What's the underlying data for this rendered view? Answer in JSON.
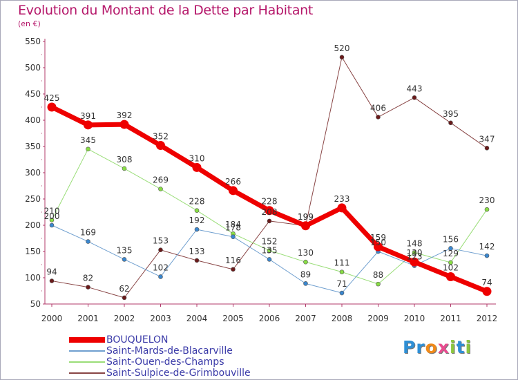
{
  "title": "Evolution du Montant de la Dette par Habitant",
  "subtitle": "(en €)",
  "logo": {
    "text": "Proxiti",
    "letters": [
      {
        "ch": "P",
        "color": "#2e8fd6"
      },
      {
        "ch": "r",
        "color": "#2e8fd6"
      },
      {
        "ch": "o",
        "color": "#f08a1a"
      },
      {
        "ch": "x",
        "color": "#e84c8f"
      },
      {
        "ch": "i",
        "color": "#8cc63f"
      },
      {
        "ch": "t",
        "color": "#2e8fd6"
      },
      {
        "ch": "i",
        "color": "#8cc63f"
      }
    ]
  },
  "chart_data": {
    "type": "line",
    "title": "Evolution du Montant de la Dette par Habitant",
    "subtitle": "(en €)",
    "x": [
      "2000",
      "2001",
      "2002",
      "2003",
      "2004",
      "2005",
      "2006",
      "2007",
      "2008",
      "2009",
      "2010",
      "2011",
      "2012"
    ],
    "ylim": [
      50,
      550
    ],
    "yticks": [
      50,
      100,
      150,
      200,
      250,
      300,
      350,
      400,
      450,
      500,
      550
    ],
    "grid": false,
    "legend_position": "bottom-left",
    "series": [
      {
        "name": "BOUQUELON",
        "color": "#ee0000",
        "marker": "#ee0000",
        "width": 7,
        "values": [
          425,
          391,
          392,
          352,
          310,
          266,
          228,
          199,
          233,
          159,
          130,
          102,
          74
        ]
      },
      {
        "name": "Saint-Mards-de-Blacarville",
        "color": "#6f9fcf",
        "marker": "#3a87cf",
        "width": 1,
        "values": [
          200,
          169,
          135,
          102,
          192,
          178,
          135,
          89,
          71,
          150,
          123,
          156,
          142
        ]
      },
      {
        "name": "Saint-Ouen-des-Champs",
        "color": "#99dd77",
        "marker": "#88dd44",
        "width": 1,
        "values": [
          210,
          345,
          308,
          269,
          228,
          184,
          152,
          130,
          111,
          88,
          148,
          129,
          230
        ]
      },
      {
        "name": "Saint-Sulpice-de-Grimbouville",
        "color": "#884444",
        "marker": "#6a1a1a",
        "width": 1,
        "values": [
          94,
          82,
          62,
          153,
          133,
          116,
          208,
          199,
          520,
          406,
          443,
          395,
          347
        ]
      }
    ]
  }
}
